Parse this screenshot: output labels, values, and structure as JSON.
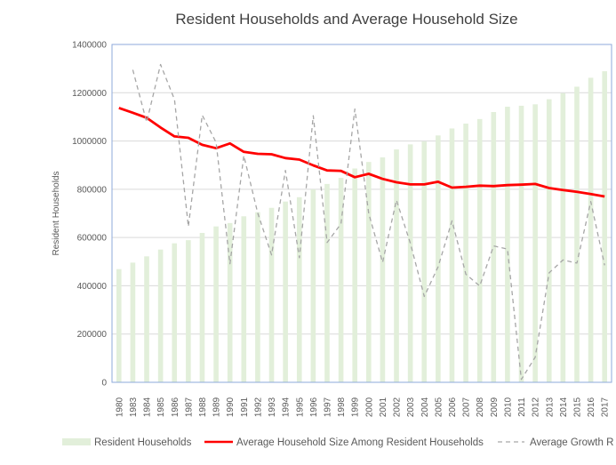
{
  "chart_data": {
    "type": "bar+line",
    "title": "Resident Households and Average Household Size",
    "ylabel": "Resident Households",
    "xlabel": "",
    "ylim": [
      0,
      1400000
    ],
    "yticks": [
      "0",
      "200000",
      "400000",
      "600000",
      "800000",
      "1000000",
      "1200000",
      "1400000"
    ],
    "grid": true,
    "legend_position": "bottom",
    "categories": [
      "1980",
      "1983",
      "1984",
      "1985",
      "1986",
      "1987",
      "1988",
      "1989",
      "1990",
      "1991",
      "1992",
      "1993",
      "1994",
      "1995",
      "1996",
      "1997",
      "1998",
      "1999",
      "2000",
      "2001",
      "2002",
      "2003",
      "2004",
      "2005",
      "2006",
      "2007",
      "2008",
      "2009",
      "2010",
      "2011",
      "2012",
      "2013",
      "2014",
      "2015",
      "2016",
      "2017"
    ],
    "series": [
      {
        "name": "Resident Households",
        "type": "bar",
        "color": "#e2efda",
        "values": [
          469000,
          496000,
          522000,
          550000,
          576000,
          589000,
          619000,
          646000,
          660000,
          688000,
          705000,
          723000,
          749000,
          767000,
          800000,
          822000,
          847000,
          886000,
          913000,
          932000,
          965000,
          986000,
          998000,
          1023000,
          1052000,
          1072000,
          1091000,
          1120000,
          1142000,
          1146000,
          1152000,
          1173000,
          1198000,
          1225000,
          1262000,
          1289000
        ]
      },
      {
        "name": "Average Household Size Among Resident Households",
        "type": "line",
        "color": "#ff0000",
        "values": [
          1137000,
          1117000,
          1096000,
          1056000,
          1019000,
          1013000,
          984000,
          970000,
          990000,
          955000,
          947000,
          945000,
          929000,
          923000,
          899000,
          878000,
          876000,
          850000,
          864000,
          843000,
          829000,
          820000,
          820000,
          831000,
          807000,
          810000,
          815000,
          813000,
          817000,
          819000,
          822000,
          805000,
          797000,
          789000,
          780000,
          770000
        ]
      },
      {
        "name": "Average Growth R",
        "type": "line-dashed",
        "color": "#a6a6a6",
        "values": [
          null,
          1295000,
          1078000,
          1317000,
          1172000,
          645000,
          1107000,
          994000,
          491000,
          939000,
          702000,
          528000,
          878000,
          516000,
          1105000,
          579000,
          657000,
          1132000,
          700000,
          497000,
          755000,
          577000,
          356000,
          479000,
          669000,
          448000,
          399000,
          565000,
          552000,
          12000,
          104000,
          454000,
          507000,
          494000,
          749000,
          485000
        ]
      }
    ]
  },
  "colors": {
    "border": "#8eaadb",
    "grid": "#d9d9d9"
  }
}
